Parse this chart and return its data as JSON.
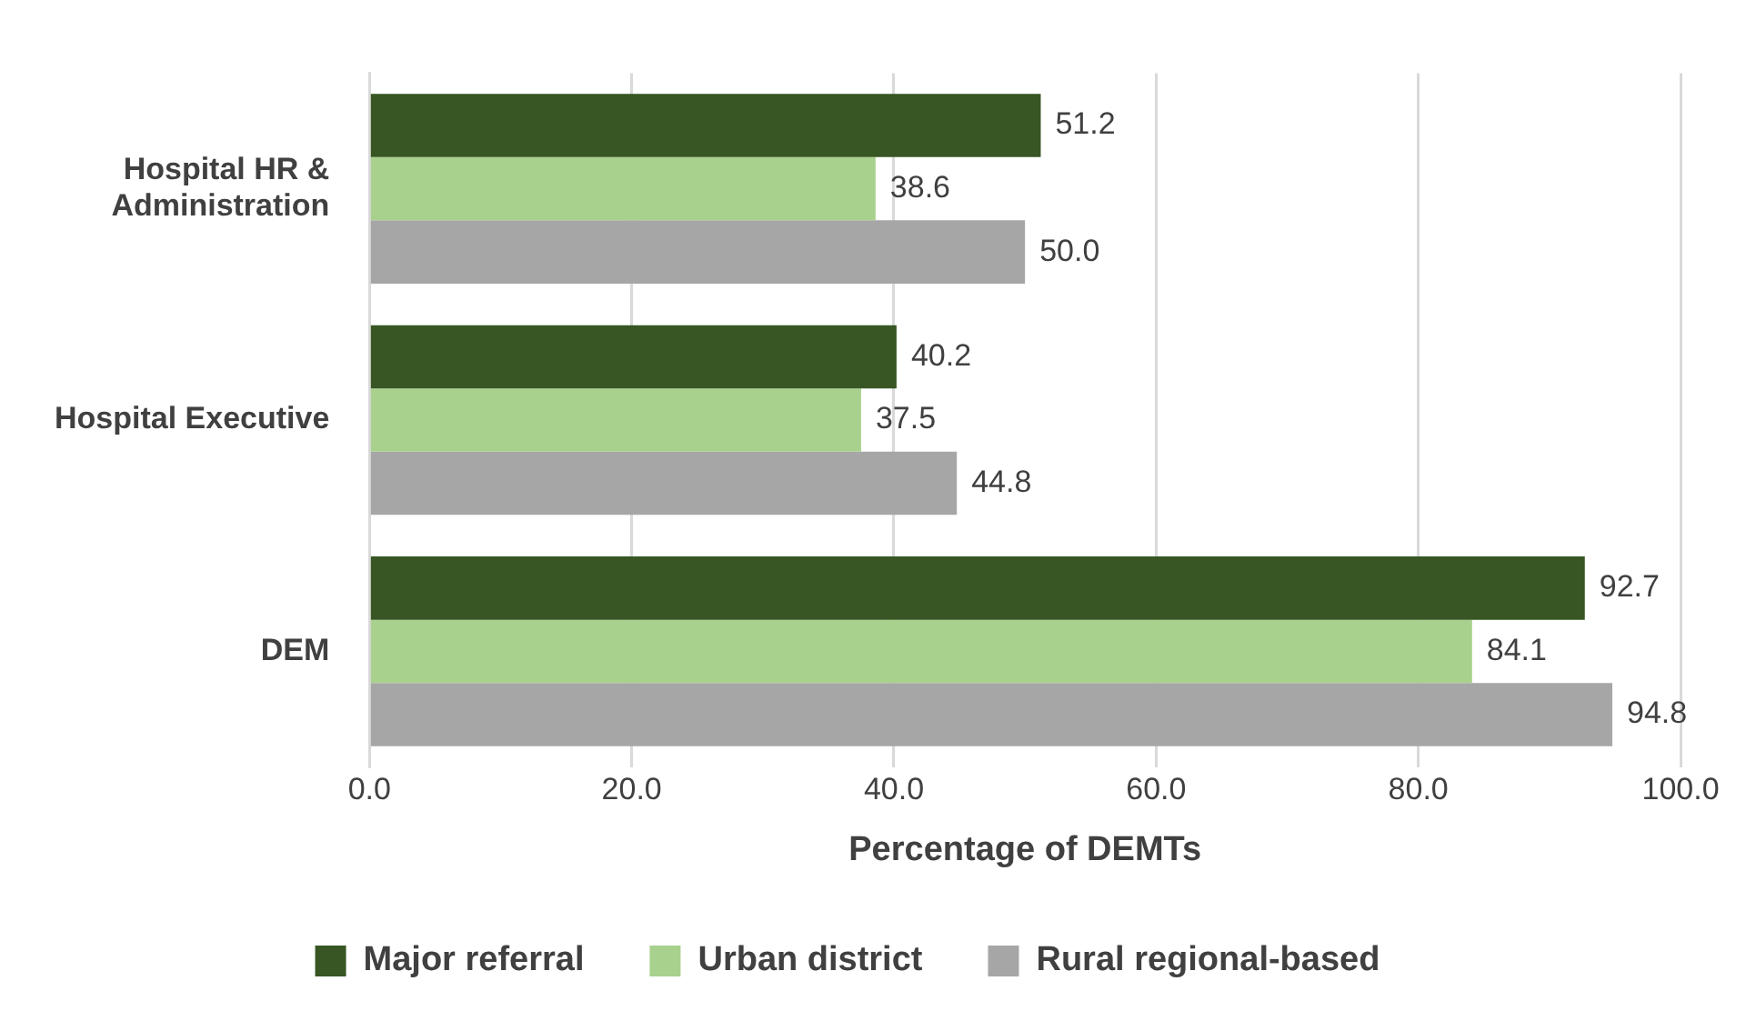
{
  "chart_data": {
    "type": "bar",
    "orientation": "horizontal",
    "xlabel": "Percentage of DEMTs",
    "categories": [
      "Hospital HR & Administration",
      "Hospital Executive",
      "DEM"
    ],
    "series": [
      {
        "name": "Major referral",
        "color": "#375623",
        "values": [
          51.2,
          40.2,
          92.7
        ],
        "value_labels": [
          "51.2",
          "40.2",
          "92.7"
        ]
      },
      {
        "name": "Urban district",
        "color": "#a9d18e",
        "values": [
          38.6,
          37.5,
          84.1
        ],
        "value_labels": [
          "38.6",
          "37.5",
          "84.1"
        ]
      },
      {
        "name": "Rural regional-based",
        "color": "#a6a6a6",
        "values": [
          50.0,
          44.8,
          94.8
        ],
        "value_labels": [
          "50.0",
          "44.8",
          "94.8"
        ]
      }
    ],
    "xlim": [
      0,
      100
    ],
    "xticks": [
      {
        "value": 0,
        "label": "0.0"
      },
      {
        "value": 20,
        "label": "20.0"
      },
      {
        "value": 40,
        "label": "40.0"
      },
      {
        "value": 60,
        "label": "60.0"
      },
      {
        "value": 80,
        "label": "80.0"
      },
      {
        "value": 100,
        "label": "100.0"
      }
    ],
    "grid": "x",
    "legend": "bottom"
  }
}
